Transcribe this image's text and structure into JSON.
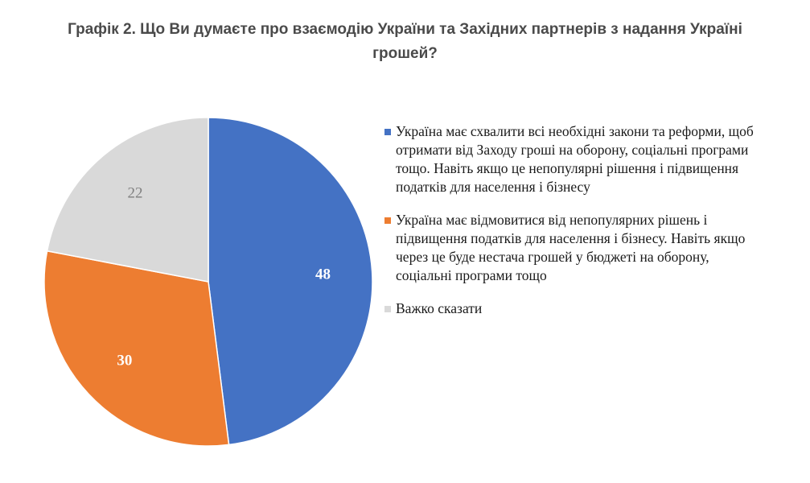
{
  "title": {
    "line1": "Графік 2. Що Ви думаєте про взаємодію України та Західних партнерів з надання Україні",
    "line2": "грошей?"
  },
  "chart_data": {
    "type": "pie",
    "start_angle_deg": 0,
    "direction": "clockwise",
    "slices": [
      {
        "label": "Україна має схвалити всі необхідні закони та реформи, щоб отримати від Заходу гроші на оборону, соціальні програми тощо. Навіть якщо це непопулярні рішення і підвищення податків для населення і бізнесу",
        "value": 48,
        "color": "#4472c4",
        "label_color": "#ffffff"
      },
      {
        "label": "Україна має відмовитися від непопулярних рішень і підвищення податків для населення і бізнесу. Навіть якщо через це буде нестача грошей у бюджеті на оборону, соціальні програми тощо",
        "value": 30,
        "color": "#ed7d31",
        "label_color": "#ffffff"
      },
      {
        "label": "Важко сказати",
        "value": 22,
        "color": "#d9d9d9",
        "label_color": "#7f7f7f"
      }
    ],
    "legend_position": "right"
  }
}
